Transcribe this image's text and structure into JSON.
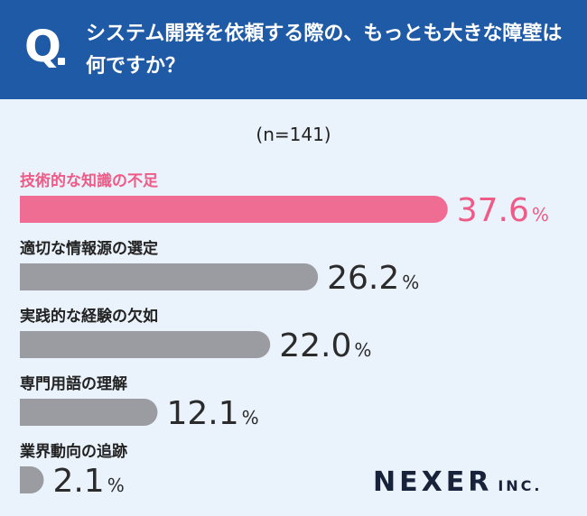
{
  "header": {
    "q_label": "Q",
    "question": "システム開発を依頼する際の、もっとも大きな障壁は何ですか？"
  },
  "chart_data": {
    "type": "bar",
    "orientation": "horizontal",
    "sample": "(n=141)",
    "value_unit": "%",
    "categories": [
      "技術的な知識の不足",
      "適切な情報源の選定",
      "実践的な経験の欠如",
      "専門用語の理解",
      "業界動向の追跡"
    ],
    "values": [
      37.6,
      26.2,
      22.0,
      12.1,
      2.1
    ],
    "value_labels": [
      "37.6",
      "26.2",
      "22.0",
      "12.1",
      "2.1"
    ],
    "highlight_index": 0,
    "colors": {
      "highlight": "#ef6d93",
      "default": "#9b9ca2",
      "highlight_text": "#ef5a86",
      "default_text": "#2b2b2b"
    }
  },
  "logo": {
    "main": "NEXER",
    "sub": "INC."
  }
}
